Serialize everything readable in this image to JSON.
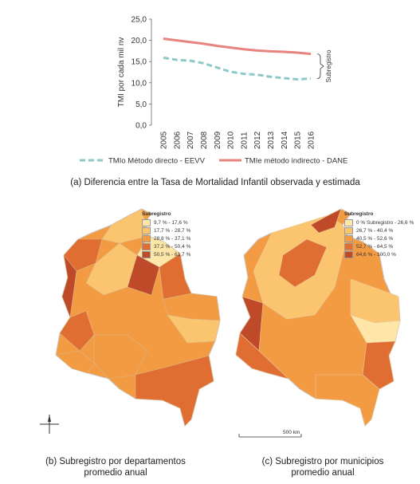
{
  "chart_data": [
    {
      "type": "line",
      "ylabel": "TMI por cada mil nv",
      "ylim": [
        0,
        25
      ],
      "yticks": [
        "0,0",
        "5,0",
        "10,0",
        "15,0",
        "20,0",
        "25,0"
      ],
      "x": [
        "2005",
        "2006",
        "2007",
        "2008",
        "2009",
        "2010",
        "2011",
        "2012",
        "2013",
        "2014",
        "2015",
        "2016"
      ],
      "series": [
        {
          "name": "TMIo Método directo - EEVV",
          "color": "#8ec9c9",
          "dash": true,
          "values": [
            15.9,
            15.4,
            15.2,
            14.6,
            13.6,
            12.6,
            12.1,
            11.9,
            11.4,
            11.1,
            10.8,
            11.0
          ]
        },
        {
          "name": "TMIe método indirecto - DANE",
          "color": "#e8837f",
          "dash": false,
          "values": [
            20.4,
            20.0,
            19.6,
            19.2,
            18.7,
            18.3,
            17.9,
            17.6,
            17.4,
            17.3,
            17.1,
            16.8
          ]
        }
      ],
      "annotation": "Subregistro",
      "grid": false,
      "legend_position": "bottom"
    }
  ],
  "caption_a": "(a) Diferencia entre la Tasa de Mortalidad Infantil observada y estimada",
  "map_b": {
    "legend_title": "Subregistro",
    "items": [
      {
        "label": "9,7 % - 17,6 %",
        "color": "#fde6a8"
      },
      {
        "label": "17,7 % - 28,7 %",
        "color": "#fbc46f"
      },
      {
        "label": "28,8 % - 37,1 %",
        "color": "#f39b43"
      },
      {
        "label": "37,2 % - 50,4 %",
        "color": "#e06e32"
      },
      {
        "label": "50,5 % - 61,7 %",
        "color": "#bf4a2a"
      }
    ],
    "caption_line1": "(b) Subregistro por departamentos",
    "caption_line2": "promedio anual"
  },
  "map_c": {
    "legend_title": "Subregistro",
    "items": [
      {
        "label": "0 % Subregistro - 26,6 %",
        "color": "#fde6a8"
      },
      {
        "label": "26,7 % - 40,4 %",
        "color": "#fbc46f"
      },
      {
        "label": "40,5 % - 52,6 %",
        "color": "#f39b43"
      },
      {
        "label": "52,7 % - 64,5 %",
        "color": "#e06e32"
      },
      {
        "label": "64,6 % - 100,0 %",
        "color": "#bf4a2a"
      }
    ],
    "scale_label": "500 km",
    "caption_line1": "(c) Subregistro por municipios",
    "caption_line2": "promedio anual"
  }
}
